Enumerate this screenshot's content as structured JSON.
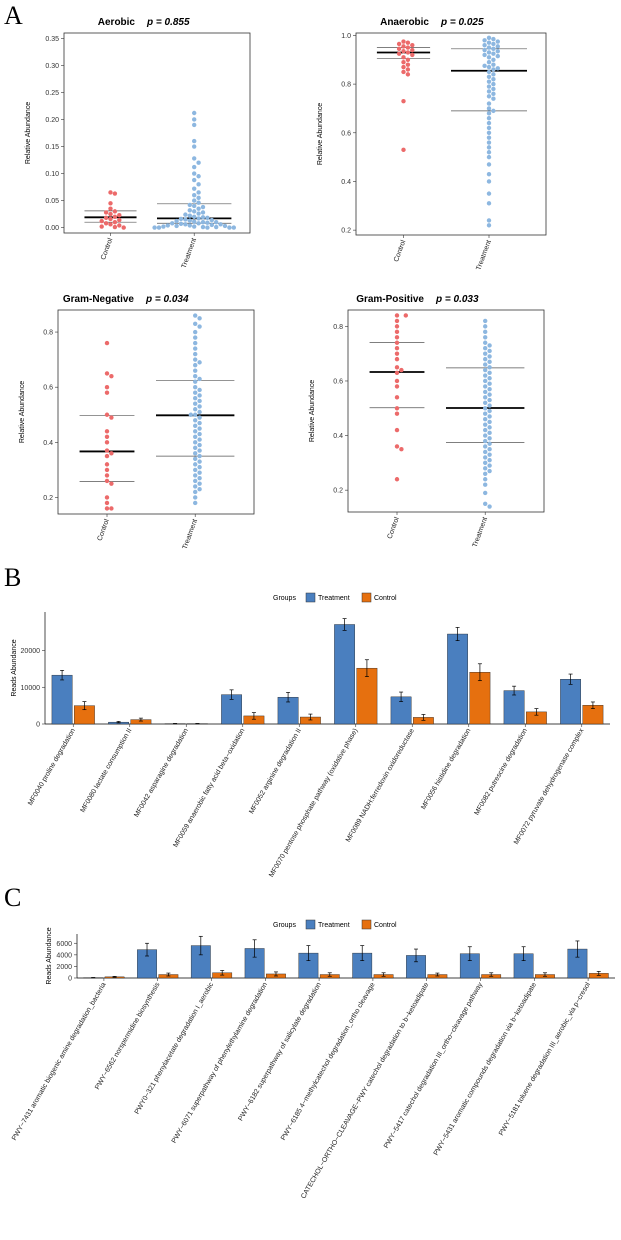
{
  "panel_labels": [
    "A",
    "B",
    "C"
  ],
  "colors": {
    "treatment": "#4a7fbf",
    "control": "#e6700f",
    "control_dot": "#ec6a6a",
    "treatment_dot": "#8db7e0"
  },
  "chart_data": [
    {
      "panel": "A",
      "type": "scatter",
      "title": "Aerobic",
      "p_label": "p = 0.855",
      "ylabel": "Relative Abundance",
      "categories": [
        "Control",
        "Treatment"
      ],
      "ylim": [
        -0.01,
        0.36
      ],
      "yticks": [
        0.0,
        0.05,
        0.1,
        0.15,
        0.2,
        0.25,
        0.3,
        0.35
      ],
      "ytick_labels": [
        "0.00",
        "0.05",
        "0.10",
        "0.15",
        "0.20",
        "0.25",
        "0.30",
        "0.35"
      ],
      "summary": [
        {
          "group": "Control",
          "q1": 0.01,
          "median": 0.019,
          "q3": 0.031
        },
        {
          "group": "Treatment",
          "q1": 0.008,
          "median": 0.017,
          "q3": 0.044
        }
      ],
      "points": [
        {
          "group": "Control",
          "values": [
            0.065,
            0.063,
            0.045,
            0.035,
            0.03,
            0.028,
            0.025,
            0.023,
            0.02,
            0.018,
            0.016,
            0.014,
            0.012,
            0.01,
            0.008,
            0.006,
            0.004,
            0.002,
            0.001,
            0.0
          ]
        },
        {
          "group": "Treatment",
          "values": [
            0.212,
            0.2,
            0.19,
            0.16,
            0.15,
            0.128,
            0.12,
            0.112,
            0.1,
            0.095,
            0.088,
            0.08,
            0.072,
            0.065,
            0.06,
            0.055,
            0.05,
            0.046,
            0.042,
            0.04,
            0.038,
            0.035,
            0.032,
            0.03,
            0.028,
            0.026,
            0.024,
            0.022,
            0.02,
            0.019,
            0.018,
            0.017,
            0.016,
            0.015,
            0.014,
            0.013,
            0.012,
            0.011,
            0.01,
            0.01,
            0.009,
            0.008,
            0.008,
            0.007,
            0.006,
            0.006,
            0.005,
            0.004,
            0.004,
            0.003,
            0.003,
            0.002,
            0.002,
            0.001,
            0.001,
            0.0,
            0.0,
            0.0,
            0.0,
            0.0
          ]
        }
      ]
    },
    {
      "panel": "A",
      "type": "scatter",
      "title": "Anaerobic",
      "p_label": "p = 0.025",
      "ylabel": "Relative Abundance",
      "categories": [
        "Control",
        "Treatment"
      ],
      "ylim": [
        0.18,
        1.01
      ],
      "yticks": [
        0.2,
        0.4,
        0.6,
        0.8,
        1.0
      ],
      "ytick_labels": [
        "0.2",
        "0.4",
        "0.6",
        "0.8",
        "1.0"
      ],
      "summary": [
        {
          "group": "Control",
          "q1": 0.905,
          "median": 0.93,
          "q3": 0.95
        },
        {
          "group": "Treatment",
          "q1": 0.69,
          "median": 0.855,
          "q3": 0.945
        }
      ],
      "points": [
        {
          "group": "Control",
          "values": [
            0.975,
            0.97,
            0.965,
            0.96,
            0.955,
            0.95,
            0.945,
            0.94,
            0.935,
            0.93,
            0.925,
            0.92,
            0.91,
            0.9,
            0.89,
            0.88,
            0.87,
            0.86,
            0.85,
            0.84,
            0.73,
            0.53
          ]
        },
        {
          "group": "Treatment",
          "values": [
            0.99,
            0.985,
            0.98,
            0.975,
            0.97,
            0.965,
            0.96,
            0.955,
            0.95,
            0.945,
            0.94,
            0.935,
            0.93,
            0.925,
            0.92,
            0.915,
            0.91,
            0.9,
            0.89,
            0.88,
            0.875,
            0.87,
            0.865,
            0.86,
            0.85,
            0.84,
            0.83,
            0.82,
            0.81,
            0.8,
            0.79,
            0.78,
            0.77,
            0.76,
            0.75,
            0.74,
            0.72,
            0.7,
            0.69,
            0.68,
            0.66,
            0.64,
            0.62,
            0.6,
            0.58,
            0.56,
            0.54,
            0.52,
            0.5,
            0.47,
            0.43,
            0.4,
            0.35,
            0.31,
            0.24,
            0.22
          ]
        }
      ]
    },
    {
      "panel": "A",
      "type": "scatter",
      "title": "Gram-Negative",
      "p_label": "p = 0.034",
      "ylabel": "Relative Abundance",
      "categories": [
        "Control",
        "Treatment"
      ],
      "ylim": [
        0.14,
        0.88
      ],
      "yticks": [
        0.2,
        0.4,
        0.6,
        0.8
      ],
      "ytick_labels": [
        "0.2",
        "0.4",
        "0.6",
        "0.8"
      ],
      "summary": [
        {
          "group": "Control",
          "q1": 0.258,
          "median": 0.367,
          "q3": 0.497
        },
        {
          "group": "Treatment",
          "q1": 0.35,
          "median": 0.498,
          "q3": 0.625
        }
      ],
      "points": [
        {
          "group": "Control",
          "values": [
            0.76,
            0.65,
            0.64,
            0.6,
            0.58,
            0.5,
            0.49,
            0.44,
            0.42,
            0.4,
            0.37,
            0.36,
            0.35,
            0.32,
            0.3,
            0.28,
            0.26,
            0.25,
            0.2,
            0.18,
            0.16,
            0.16
          ]
        },
        {
          "group": "Treatment",
          "values": [
            0.86,
            0.85,
            0.83,
            0.82,
            0.8,
            0.78,
            0.76,
            0.74,
            0.72,
            0.7,
            0.69,
            0.68,
            0.66,
            0.64,
            0.63,
            0.62,
            0.6,
            0.59,
            0.58,
            0.57,
            0.56,
            0.55,
            0.54,
            0.53,
            0.52,
            0.51,
            0.5,
            0.5,
            0.49,
            0.48,
            0.47,
            0.46,
            0.45,
            0.44,
            0.43,
            0.42,
            0.41,
            0.4,
            0.39,
            0.38,
            0.37,
            0.36,
            0.35,
            0.34,
            0.33,
            0.32,
            0.31,
            0.3,
            0.29,
            0.28,
            0.27,
            0.26,
            0.25,
            0.24,
            0.23,
            0.22,
            0.2,
            0.18
          ]
        }
      ]
    },
    {
      "panel": "A",
      "type": "scatter",
      "title": "Gram-Positive",
      "p_label": "p = 0.033",
      "ylabel": "Relative Abundance",
      "categories": [
        "Control",
        "Treatment"
      ],
      "ylim": [
        0.12,
        0.86
      ],
      "yticks": [
        0.2,
        0.4,
        0.6,
        0.8
      ],
      "ytick_labels": [
        "0.2",
        "0.4",
        "0.6",
        "0.8"
      ],
      "summary": [
        {
          "group": "Control",
          "q1": 0.502,
          "median": 0.633,
          "q3": 0.741
        },
        {
          "group": "Treatment",
          "q1": 0.375,
          "median": 0.501,
          "q3": 0.648
        }
      ],
      "points": [
        {
          "group": "Control",
          "values": [
            0.84,
            0.84,
            0.82,
            0.8,
            0.78,
            0.76,
            0.74,
            0.72,
            0.7,
            0.68,
            0.65,
            0.64,
            0.63,
            0.6,
            0.58,
            0.54,
            0.5,
            0.48,
            0.42,
            0.36,
            0.35,
            0.24
          ]
        },
        {
          "group": "Treatment",
          "values": [
            0.82,
            0.8,
            0.78,
            0.76,
            0.74,
            0.73,
            0.72,
            0.71,
            0.7,
            0.69,
            0.68,
            0.67,
            0.66,
            0.65,
            0.64,
            0.63,
            0.62,
            0.61,
            0.6,
            0.59,
            0.58,
            0.57,
            0.56,
            0.55,
            0.54,
            0.53,
            0.52,
            0.51,
            0.5,
            0.49,
            0.48,
            0.47,
            0.46,
            0.45,
            0.44,
            0.43,
            0.42,
            0.41,
            0.4,
            0.39,
            0.38,
            0.37,
            0.36,
            0.35,
            0.34,
            0.33,
            0.32,
            0.31,
            0.3,
            0.29,
            0.28,
            0.27,
            0.26,
            0.24,
            0.22,
            0.19,
            0.15,
            0.14
          ]
        }
      ]
    },
    {
      "panel": "B",
      "type": "bar",
      "legend_title": "Groups",
      "series_names": [
        "Treatment",
        "Control"
      ],
      "ylabel": "Reads Abundance",
      "ylim": [
        0,
        30500
      ],
      "yticks": [
        0,
        10000,
        20000
      ],
      "ytick_labels": [
        "0",
        "10000",
        "20000"
      ],
      "categories": [
        "MF0040 proline degradation",
        "MF0080 lactate consumption II",
        "MF0042 asparagine degradation",
        "MF0059 anaerobic fatty acid beta−oxidation",
        "MF0052 arginine degradation II",
        "MF0070 pentose phosphate pathway (oxidative phase)",
        "MF0089 NADH:ferredoxin oxidoreductase",
        "MF0056 histidine degradation",
        "MF0082 putrescine degradation",
        "MF0072 pyruvate dehydrogenase complex"
      ],
      "series": [
        {
          "name": "Treatment",
          "values": [
            13300,
            500,
            100,
            8000,
            7300,
            27100,
            7400,
            24500,
            9100,
            12200
          ],
          "errors": [
            1300,
            200,
            50,
            1300,
            1300,
            1600,
            1300,
            1800,
            1200,
            1400
          ]
        },
        {
          "name": "Control",
          "values": [
            5000,
            1200,
            100,
            2200,
            1900,
            15200,
            1800,
            14100,
            3300,
            5100
          ],
          "errors": [
            1100,
            400,
            50,
            900,
            800,
            2300,
            800,
            2300,
            900,
            900
          ]
        }
      ]
    },
    {
      "panel": "C",
      "type": "bar",
      "legend_title": "Groups",
      "series_names": [
        "Treatment",
        "Control"
      ],
      "ylabel": "Reads Abundance",
      "ylim": [
        0,
        7600
      ],
      "yticks": [
        0,
        2000,
        4000,
        6000
      ],
      "ytick_labels": [
        "0",
        "2000",
        "4000",
        "6000"
      ],
      "categories": [
        "PWY−7431 aromatic biogenic amine degradation_bacteria",
        "PWY−6562 norspermidine biosynthesis",
        "PWY0−321 phenylacetate degradation I_aerobic",
        "PWY−6071 superpathway of phenylethylamine degradation",
        "PWY−6182 superpathway of salicylate degradation",
        "PWY−6185 4−methylcatechol degradation_ortho cleavage",
        "CATECHOL−ORTHO−CLEAVAGE−PWY catechol degradation to b−ketoadipate",
        "PWY−5417 catechol degradation III_ortho−cleavage pathway",
        "PWY−5431 aromatic compounds degradation via b−ketoadipate",
        "PWY−5181 toluene degradation III_aerobic_via p−cresol"
      ],
      "series": [
        {
          "name": "Treatment",
          "values": [
            60,
            4900,
            5600,
            5100,
            4300,
            4300,
            3900,
            4200,
            4200,
            5000
          ],
          "errors": [
            30,
            1100,
            1600,
            1500,
            1300,
            1300,
            1100,
            1200,
            1200,
            1400
          ]
        },
        {
          "name": "Control",
          "values": [
            200,
            600,
            900,
            700,
            600,
            600,
            600,
            600,
            600,
            800
          ],
          "errors": [
            80,
            250,
            400,
            350,
            300,
            300,
            250,
            300,
            300,
            350
          ]
        }
      ]
    }
  ]
}
